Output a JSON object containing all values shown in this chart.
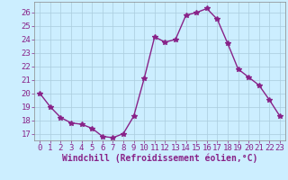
{
  "x": [
    0,
    1,
    2,
    3,
    4,
    5,
    6,
    7,
    8,
    9,
    10,
    11,
    12,
    13,
    14,
    15,
    16,
    17,
    18,
    19,
    20,
    21,
    22,
    23
  ],
  "y": [
    20,
    19,
    18.2,
    17.8,
    17.7,
    17.4,
    16.8,
    16.7,
    17.0,
    18.3,
    21.1,
    24.2,
    23.8,
    24.0,
    25.8,
    26.0,
    26.3,
    25.5,
    23.7,
    21.8,
    21.2,
    20.6,
    19.5,
    18.3
  ],
  "line_color": "#882288",
  "marker": "*",
  "marker_size": 4,
  "bg_color": "#cceeff",
  "grid_color": "#aaccdd",
  "xlabel": "Windchill (Refroidissement éolien,°C)",
  "xlabel_color": "#882288",
  "tick_color": "#882288",
  "ylim": [
    16.5,
    26.8
  ],
  "xlim": [
    -0.5,
    23.5
  ],
  "yticks": [
    17,
    18,
    19,
    20,
    21,
    22,
    23,
    24,
    25,
    26
  ],
  "xticks": [
    0,
    1,
    2,
    3,
    4,
    5,
    6,
    7,
    8,
    9,
    10,
    11,
    12,
    13,
    14,
    15,
    16,
    17,
    18,
    19,
    20,
    21,
    22,
    23
  ],
  "linewidth": 1.0,
  "tick_fontsize": 6.5,
  "xlabel_fontsize": 7,
  "xlabel_fontweight": "bold"
}
